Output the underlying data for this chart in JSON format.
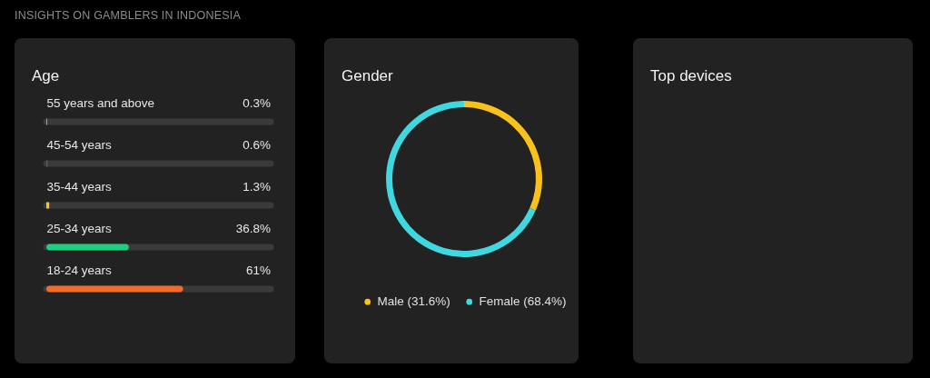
{
  "chart_data": [
    {
      "type": "bar",
      "orientation": "horizontal",
      "title": "Age",
      "annotations": [
        "INSIGHTS ON GAMBLERS IN INDONESIA"
      ],
      "categories": [
        "55 years and above",
        "45-54 years",
        "35-44 years",
        "25-34 years",
        "18-24 years"
      ],
      "values": [
        0.3,
        0.6,
        1.3,
        36.8,
        61
      ],
      "colors": [
        "#c8c8c8",
        "#5a5a5a",
        "#f5c518",
        "#1fcf80",
        "#f26b2a"
      ],
      "value_labels": [
        "0.3%",
        "0.6%",
        "1.3%",
        "36.8%",
        "61%"
      ],
      "xlim": [
        0,
        100
      ],
      "tick_labels": "y"
    },
    {
      "type": "donut",
      "title": "Gender",
      "categories": [
        "Male (31.6%)",
        "Female (68.4%)"
      ],
      "values": [
        31.6,
        68.4
      ],
      "colors": [
        "#f8c21c",
        "#40d8e0"
      ],
      "legend": "bottom"
    },
    {
      "type": "other",
      "title": "Top devices"
    }
  ]
}
